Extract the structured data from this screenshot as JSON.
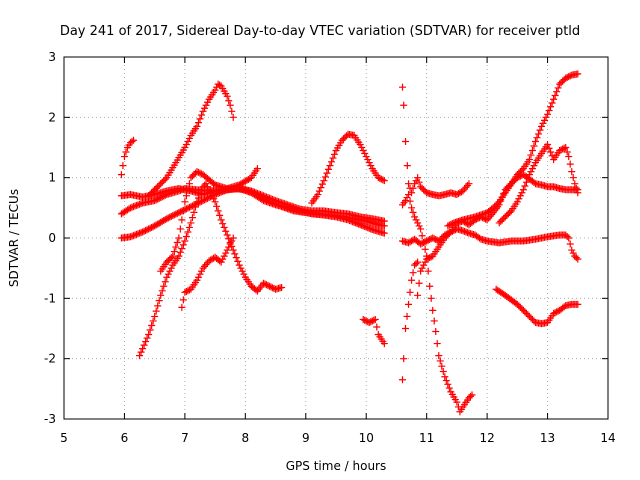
{
  "chart_data": {
    "type": "scatter",
    "title": "Day 241 of 2017, Sidereal Day-to-day VTEC variation (SDTVAR) for receiver ptld",
    "xlabel": "GPS time / hours",
    "ylabel": "SDTVAR / TECUs",
    "xlim": [
      5,
      14
    ],
    "ylim": [
      -3,
      3
    ],
    "xticks": [
      "5",
      "6",
      "7",
      "8",
      "9",
      "10",
      "11",
      "12",
      "13",
      "14"
    ],
    "yticks": [
      "3",
      "2",
      "1",
      "0",
      "-1",
      "-2",
      "-3"
    ],
    "grid": true,
    "marker": "plus",
    "color": "#ff0000",
    "series": [
      {
        "name": "s1",
        "points": [
          [
            5.95,
            1.05
          ],
          [
            6.0,
            1.35
          ],
          [
            6.05,
            1.5
          ],
          [
            6.1,
            1.58
          ],
          [
            6.15,
            1.62
          ]
        ]
      },
      {
        "name": "s2",
        "points": [
          [
            5.95,
            0.7
          ],
          [
            6.1,
            0.72
          ],
          [
            6.3,
            0.68
          ],
          [
            6.5,
            0.72
          ],
          [
            6.7,
            0.78
          ],
          [
            6.9,
            0.82
          ],
          [
            7.1,
            0.78
          ],
          [
            7.3,
            0.72
          ],
          [
            7.5,
            0.78
          ],
          [
            7.7,
            0.8
          ],
          [
            7.9,
            0.82
          ],
          [
            8.1,
            0.78
          ],
          [
            8.3,
            0.7
          ],
          [
            8.5,
            0.62
          ],
          [
            8.7,
            0.55
          ],
          [
            8.9,
            0.48
          ],
          [
            9.1,
            0.45
          ],
          [
            9.3,
            0.45
          ],
          [
            9.5,
            0.42
          ],
          [
            9.7,
            0.4
          ],
          [
            9.9,
            0.35
          ],
          [
            10.1,
            0.32
          ],
          [
            10.3,
            0.28
          ]
        ]
      },
      {
        "name": "s3",
        "points": [
          [
            5.95,
            0.4
          ],
          [
            6.1,
            0.5
          ],
          [
            6.3,
            0.58
          ],
          [
            6.5,
            0.62
          ],
          [
            6.7,
            0.72
          ],
          [
            6.9,
            0.78
          ],
          [
            7.0,
            0.82
          ],
          [
            7.2,
            0.8
          ],
          [
            7.4,
            0.78
          ],
          [
            7.6,
            0.8
          ],
          [
            7.8,
            0.82
          ],
          [
            8.0,
            0.8
          ],
          [
            8.2,
            0.72
          ],
          [
            8.4,
            0.6
          ],
          [
            8.6,
            0.52
          ],
          [
            8.8,
            0.45
          ],
          [
            9.0,
            0.42
          ],
          [
            9.2,
            0.4
          ],
          [
            9.4,
            0.38
          ],
          [
            9.6,
            0.36
          ],
          [
            9.8,
            0.32
          ],
          [
            10.0,
            0.28
          ],
          [
            10.2,
            0.22
          ],
          [
            10.3,
            0.2
          ]
        ]
      },
      {
        "name": "s4",
        "points": [
          [
            5.95,
            0.0
          ],
          [
            6.1,
            0.02
          ],
          [
            6.3,
            0.1
          ],
          [
            6.5,
            0.2
          ],
          [
            6.7,
            0.32
          ],
          [
            6.9,
            0.42
          ],
          [
            7.1,
            0.52
          ],
          [
            7.3,
            0.62
          ],
          [
            7.5,
            0.72
          ],
          [
            7.7,
            0.8
          ],
          [
            7.9,
            0.82
          ],
          [
            8.1,
            0.75
          ],
          [
            8.3,
            0.62
          ],
          [
            8.5,
            0.55
          ],
          [
            8.7,
            0.5
          ],
          [
            8.9,
            0.45
          ],
          [
            9.1,
            0.4
          ],
          [
            9.3,
            0.38
          ],
          [
            9.5,
            0.35
          ],
          [
            9.7,
            0.3
          ],
          [
            9.9,
            0.22
          ],
          [
            10.1,
            0.14
          ],
          [
            10.3,
            0.08
          ]
        ]
      },
      {
        "name": "s5",
        "points": [
          [
            6.25,
            -1.95
          ],
          [
            6.4,
            -1.6
          ],
          [
            6.5,
            -1.3
          ],
          [
            6.6,
            -0.95
          ],
          [
            6.7,
            -0.65
          ],
          [
            6.8,
            -0.45
          ],
          [
            6.9,
            -0.3
          ],
          [
            7.0,
            -0.05
          ],
          [
            7.1,
            0.25
          ],
          [
            7.2,
            0.6
          ],
          [
            7.3,
            0.85
          ],
          [
            7.35,
            0.9
          ],
          [
            7.4,
            0.8
          ],
          [
            7.5,
            0.6
          ],
          [
            7.6,
            0.3
          ],
          [
            7.7,
            0.05
          ],
          [
            7.8,
            -0.2
          ],
          [
            7.9,
            -0.45
          ],
          [
            8.0,
            -0.65
          ],
          [
            8.1,
            -0.8
          ],
          [
            8.2,
            -0.88
          ],
          [
            8.3,
            -0.75
          ],
          [
            8.4,
            -0.8
          ],
          [
            8.5,
            -0.85
          ],
          [
            8.6,
            -0.82
          ]
        ]
      },
      {
        "name": "s6",
        "points": [
          [
            6.6,
            -0.55
          ],
          [
            6.7,
            -0.4
          ],
          [
            6.8,
            -0.3
          ],
          [
            6.9,
            0.0
          ],
          [
            7.0,
            0.6
          ],
          [
            7.1,
            1.0
          ],
          [
            7.2,
            1.1
          ],
          [
            7.3,
            1.05
          ],
          [
            7.5,
            0.88
          ],
          [
            7.7,
            0.82
          ],
          [
            7.9,
            0.88
          ],
          [
            8.1,
            1.0
          ],
          [
            8.2,
            1.15
          ]
        ]
      },
      {
        "name": "s7",
        "points": [
          [
            6.4,
            0.7
          ],
          [
            6.55,
            0.85
          ],
          [
            6.7,
            1.0
          ],
          [
            6.85,
            1.25
          ],
          [
            7.0,
            1.5
          ],
          [
            7.1,
            1.7
          ],
          [
            7.2,
            1.85
          ],
          [
            7.3,
            2.1
          ],
          [
            7.4,
            2.3
          ],
          [
            7.5,
            2.45
          ],
          [
            7.55,
            2.55
          ],
          [
            7.6,
            2.52
          ],
          [
            7.7,
            2.35
          ],
          [
            7.75,
            2.2
          ],
          [
            7.8,
            2.0
          ]
        ]
      },
      {
        "name": "s8",
        "points": [
          [
            6.95,
            -1.15
          ],
          [
            7.0,
            -0.9
          ],
          [
            7.1,
            -0.85
          ],
          [
            7.2,
            -0.7
          ],
          [
            7.3,
            -0.5
          ],
          [
            7.4,
            -0.38
          ],
          [
            7.5,
            -0.32
          ],
          [
            7.6,
            -0.4
          ],
          [
            7.7,
            -0.2
          ],
          [
            7.8,
            0.0
          ]
        ]
      },
      {
        "name": "s9",
        "points": [
          [
            9.1,
            0.58
          ],
          [
            9.2,
            0.72
          ],
          [
            9.3,
            0.95
          ],
          [
            9.4,
            1.2
          ],
          [
            9.5,
            1.45
          ],
          [
            9.6,
            1.62
          ],
          [
            9.7,
            1.72
          ],
          [
            9.8,
            1.7
          ],
          [
            9.9,
            1.55
          ],
          [
            10.0,
            1.35
          ],
          [
            10.1,
            1.15
          ],
          [
            10.2,
            1.0
          ],
          [
            10.3,
            0.95
          ]
        ]
      },
      {
        "name": "s10",
        "points": [
          [
            9.95,
            -1.35
          ],
          [
            10.05,
            -1.4
          ],
          [
            10.15,
            -1.35
          ],
          [
            10.2,
            -1.6
          ],
          [
            10.3,
            -1.75
          ]
        ]
      },
      {
        "name": "s11",
        "points": [
          [
            10.6,
            -2.35
          ],
          [
            10.62,
            -2.0
          ],
          [
            10.65,
            -1.5
          ],
          [
            10.7,
            -1.1
          ],
          [
            10.75,
            -0.7
          ],
          [
            10.8,
            -0.45
          ],
          [
            10.85,
            -0.4
          ]
        ]
      },
      {
        "name": "s12",
        "points": [
          [
            10.6,
            2.5
          ],
          [
            10.62,
            2.2
          ],
          [
            10.65,
            1.6
          ],
          [
            10.68,
            1.2
          ],
          [
            10.7,
            0.9
          ],
          [
            10.75,
            0.75
          ],
          [
            10.8,
            0.9
          ],
          [
            10.85,
            1.0
          ],
          [
            10.9,
            0.85
          ],
          [
            11.0,
            0.75
          ],
          [
            11.1,
            0.72
          ],
          [
            11.2,
            0.7
          ],
          [
            11.3,
            0.72
          ],
          [
            11.4,
            0.75
          ],
          [
            11.5,
            0.72
          ],
          [
            11.6,
            0.78
          ],
          [
            11.7,
            0.9
          ]
        ]
      },
      {
        "name": "s13",
        "points": [
          [
            10.6,
            0.55
          ],
          [
            10.65,
            0.62
          ],
          [
            10.7,
            0.72
          ],
          [
            10.75,
            0.5
          ],
          [
            10.8,
            0.35
          ],
          [
            10.9,
            0.15
          ],
          [
            11.0,
            -0.3
          ],
          [
            11.05,
            -0.8
          ],
          [
            11.1,
            -1.2
          ],
          [
            11.15,
            -1.55
          ],
          [
            11.2,
            -1.95
          ],
          [
            11.3,
            -2.3
          ],
          [
            11.4,
            -2.55
          ],
          [
            11.5,
            -2.72
          ],
          [
            11.55,
            -2.88
          ],
          [
            11.6,
            -2.8
          ],
          [
            11.7,
            -2.65
          ],
          [
            11.75,
            -2.6
          ]
        ]
      },
      {
        "name": "s14",
        "points": [
          [
            10.6,
            -0.05
          ],
          [
            10.7,
            -0.08
          ],
          [
            10.8,
            -0.02
          ],
          [
            10.9,
            -0.1
          ],
          [
            11.0,
            -0.05
          ],
          [
            11.1,
            0.0
          ],
          [
            11.2,
            -0.05
          ],
          [
            11.3,
            0.05
          ],
          [
            11.4,
            0.1
          ],
          [
            11.5,
            0.15
          ],
          [
            11.6,
            0.12
          ],
          [
            11.7,
            0.08
          ],
          [
            11.8,
            0.05
          ],
          [
            11.9,
            -0.02
          ],
          [
            12.0,
            -0.05
          ],
          [
            12.2,
            -0.08
          ],
          [
            12.4,
            -0.05
          ],
          [
            12.6,
            -0.05
          ],
          [
            12.8,
            -0.02
          ],
          [
            13.0,
            0.02
          ],
          [
            13.2,
            0.05
          ],
          [
            13.3,
            0.05
          ],
          [
            13.35,
            0.0
          ],
          [
            13.4,
            -0.2
          ],
          [
            13.45,
            -0.3
          ],
          [
            13.5,
            -0.35
          ]
        ]
      },
      {
        "name": "s15",
        "points": [
          [
            10.85,
            -0.95
          ],
          [
            10.9,
            -0.55
          ],
          [
            11.0,
            -0.35
          ],
          [
            11.1,
            -0.3
          ],
          [
            11.2,
            -0.15
          ],
          [
            11.3,
            0.0
          ],
          [
            11.4,
            0.1
          ],
          [
            11.5,
            0.25
          ],
          [
            11.6,
            0.28
          ],
          [
            11.7,
            0.22
          ],
          [
            11.8,
            0.3
          ],
          [
            11.9,
            0.35
          ],
          [
            12.0,
            0.3
          ],
          [
            12.1,
            0.42
          ],
          [
            12.2,
            0.55
          ],
          [
            12.3,
            0.8
          ],
          [
            12.4,
            0.9
          ],
          [
            12.5,
            1.0
          ],
          [
            12.6,
            1.05
          ],
          [
            12.7,
            0.98
          ],
          [
            12.8,
            0.9
          ],
          [
            12.9,
            0.88
          ],
          [
            13.0,
            0.85
          ],
          [
            13.1,
            0.85
          ],
          [
            13.2,
            0.82
          ],
          [
            13.3,
            0.8
          ],
          [
            13.4,
            0.8
          ],
          [
            13.5,
            0.8
          ]
        ]
      },
      {
        "name": "s16",
        "points": [
          [
            11.35,
            0.2
          ],
          [
            11.45,
            0.25
          ],
          [
            11.6,
            0.3
          ],
          [
            11.8,
            0.35
          ],
          [
            12.0,
            0.42
          ],
          [
            12.1,
            0.5
          ],
          [
            12.2,
            0.6
          ],
          [
            12.3,
            0.75
          ],
          [
            12.4,
            0.9
          ],
          [
            12.5,
            1.05
          ],
          [
            12.6,
            1.15
          ],
          [
            12.7,
            1.3
          ],
          [
            12.8,
            1.6
          ],
          [
            12.9,
            1.85
          ],
          [
            13.0,
            2.05
          ],
          [
            13.1,
            2.3
          ],
          [
            13.2,
            2.55
          ],
          [
            13.3,
            2.65
          ],
          [
            13.4,
            2.7
          ],
          [
            13.5,
            2.72
          ]
        ]
      },
      {
        "name": "s17",
        "points": [
          [
            12.2,
            0.25
          ],
          [
            12.3,
            0.35
          ],
          [
            12.4,
            0.45
          ],
          [
            12.5,
            0.6
          ],
          [
            12.6,
            0.8
          ],
          [
            12.7,
            1.05
          ],
          [
            12.8,
            1.25
          ],
          [
            12.9,
            1.4
          ],
          [
            13.0,
            1.55
          ],
          [
            13.1,
            1.3
          ],
          [
            13.2,
            1.45
          ],
          [
            13.3,
            1.5
          ],
          [
            13.35,
            1.35
          ],
          [
            13.4,
            1.1
          ],
          [
            13.45,
            0.9
          ],
          [
            13.5,
            0.75
          ]
        ]
      },
      {
        "name": "s18",
        "points": [
          [
            12.15,
            -0.85
          ],
          [
            12.3,
            -0.95
          ],
          [
            12.5,
            -1.1
          ],
          [
            12.6,
            -1.2
          ],
          [
            12.7,
            -1.3
          ],
          [
            12.8,
            -1.4
          ],
          [
            12.9,
            -1.42
          ],
          [
            13.0,
            -1.4
          ],
          [
            13.1,
            -1.25
          ],
          [
            13.2,
            -1.2
          ],
          [
            13.3,
            -1.12
          ],
          [
            13.4,
            -1.1
          ],
          [
            13.5,
            -1.1
          ]
        ]
      }
    ]
  }
}
